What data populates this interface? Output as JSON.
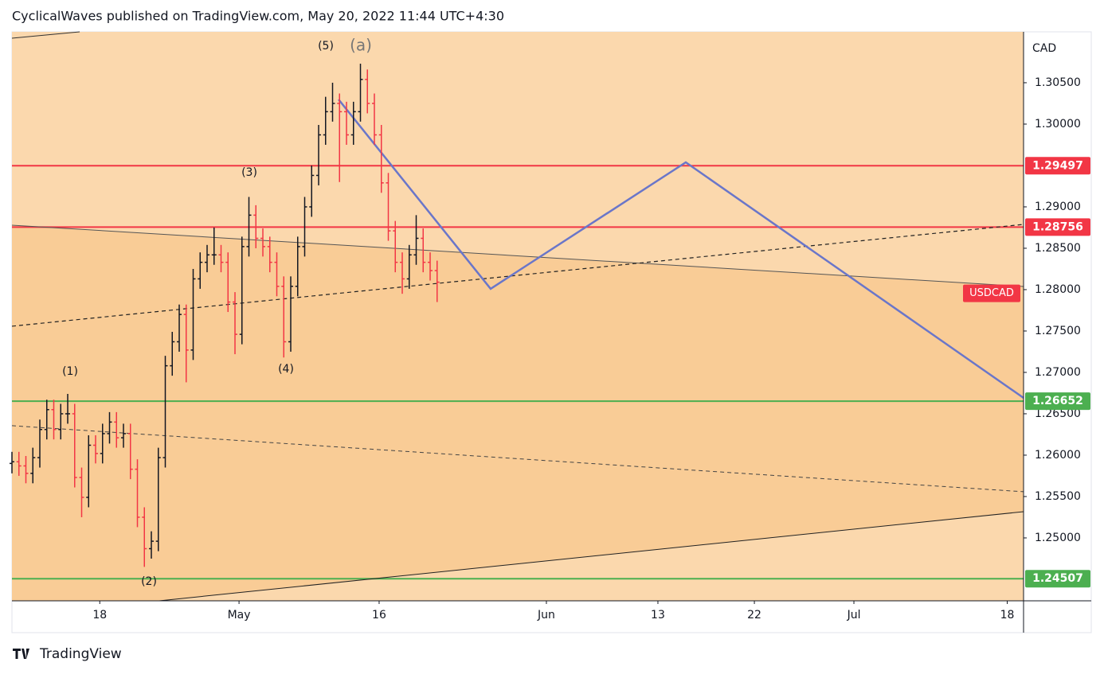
{
  "header": {
    "text": "CyclicalWaves published on TradingView.com, May 20, 2022 11:44 UTC+4:30"
  },
  "footer": {
    "brand": "TradingView"
  },
  "chart_data": {
    "type": "ohlc",
    "symbol": "USDCAD",
    "y_axis_label": "CAD",
    "up_color": "#131722",
    "down_color": "#f23645",
    "x": [
      0,
      0.5,
      1,
      1.5,
      2,
      2.5,
      3,
      3.5,
      4,
      4.5,
      5,
      5.5,
      6,
      6.5,
      7,
      7.5,
      8,
      8.5,
      9,
      9.5,
      10,
      10.5,
      11,
      11.5,
      12,
      12.5,
      13,
      13.5,
      14,
      14.5,
      15,
      15.5,
      16,
      16.5,
      17,
      17.5,
      18,
      18.5,
      19,
      19.5,
      20,
      20.5,
      21,
      21.5,
      22,
      22.5,
      23,
      23.5,
      24,
      24.5,
      25,
      25.5,
      26,
      26.5,
      27,
      27.5,
      28,
      28.5,
      29,
      29.5,
      30,
      30.5
    ],
    "open": [
      1.259,
      1.2592,
      1.2587,
      1.2578,
      1.2597,
      1.2631,
      1.2655,
      1.2631,
      1.265,
      1.265,
      1.2573,
      1.2549,
      1.2612,
      1.2602,
      1.2626,
      1.264,
      1.2621,
      1.2626,
      1.2583,
      1.2525,
      1.2487,
      1.2496,
      1.2597,
      1.2708,
      1.2737,
      1.277,
      1.2727,
      1.2813,
      1.2833,
      1.2842,
      1.2842,
      1.2833,
      1.2785,
      1.2746,
      1.2852,
      1.289,
      1.2862,
      1.2852,
      1.2833,
      1.2804,
      1.2737,
      1.2804,
      1.2852,
      1.29,
      1.2938,
      1.2987,
      1.3015,
      1.3025,
      1.3015,
      1.2987,
      1.3015,
      1.3054,
      1.3025,
      1.2987,
      1.2929,
      1.2871,
      1.2833,
      1.2813,
      1.2842,
      1.2862,
      1.2833,
      1.2823
    ],
    "high": [
      1.2604,
      1.2604,
      1.2599,
      1.2609,
      1.2643,
      1.2667,
      1.2667,
      1.2662,
      1.2674,
      1.2662,
      1.2585,
      1.2624,
      1.2624,
      1.2638,
      1.2652,
      1.2652,
      1.2638,
      1.2638,
      1.2595,
      1.2537,
      1.2508,
      1.2609,
      1.272,
      1.2749,
      1.2782,
      1.2782,
      1.2825,
      1.2845,
      1.2854,
      1.2875,
      1.2854,
      1.2845,
      1.2797,
      1.2864,
      1.2912,
      1.2902,
      1.2874,
      1.2864,
      1.2845,
      1.2816,
      1.2816,
      1.2864,
      1.2912,
      1.295,
      1.2999,
      1.3033,
      1.305,
      1.3037,
      1.3027,
      1.3027,
      1.3073,
      1.3066,
      1.3037,
      1.2999,
      1.2941,
      1.2883,
      1.2845,
      1.2854,
      1.289,
      1.2874,
      1.2845,
      1.2835
    ],
    "low": [
      1.2578,
      1.2575,
      1.2566,
      1.2566,
      1.2585,
      1.2619,
      1.2619,
      1.2619,
      1.2638,
      1.2561,
      1.2525,
      1.2537,
      1.259,
      1.259,
      1.2614,
      1.2609,
      1.2609,
      1.2571,
      1.2513,
      1.2465,
      1.2475,
      1.2484,
      1.2585,
      1.2696,
      1.2725,
      1.2688,
      1.2715,
      1.2801,
      1.2821,
      1.283,
      1.2821,
      1.2773,
      1.2722,
      1.2734,
      1.284,
      1.285,
      1.284,
      1.2821,
      1.2792,
      1.2718,
      1.2725,
      1.2792,
      1.284,
      1.2888,
      1.2926,
      1.2975,
      1.3003,
      1.293,
      1.2975,
      1.2975,
      1.3003,
      1.3013,
      1.2975,
      1.2917,
      1.2859,
      1.2821,
      1.2795,
      1.2801,
      1.283,
      1.2821,
      1.2811,
      1.2785
    ],
    "close": [
      1.2592,
      1.2587,
      1.2578,
      1.2597,
      1.2631,
      1.2655,
      1.2631,
      1.265,
      1.265,
      1.2573,
      1.2549,
      1.2612,
      1.2602,
      1.2626,
      1.264,
      1.2621,
      1.2626,
      1.2583,
      1.2525,
      1.2487,
      1.2496,
      1.2597,
      1.2708,
      1.2737,
      1.277,
      1.2727,
      1.2813,
      1.2833,
      1.2842,
      1.2842,
      1.2833,
      1.2785,
      1.2746,
      1.2852,
      1.289,
      1.2862,
      1.2852,
      1.2833,
      1.2804,
      1.2737,
      1.2804,
      1.2852,
      1.29,
      1.2938,
      1.2987,
      1.3015,
      1.3025,
      1.3015,
      1.2987,
      1.3015,
      1.3054,
      1.3025,
      1.2987,
      1.2929,
      1.2871,
      1.2833,
      1.2813,
      1.2842,
      1.2862,
      1.2833,
      1.2823,
      1.2809
    ],
    "xlim": [
      0,
      72.57
    ],
    "ylim": [
      1.2424,
      1.31115
    ],
    "xticks": [
      {
        "value": 6.3,
        "label": "18"
      },
      {
        "value": 16.29,
        "label": "May"
      },
      {
        "value": 26.34,
        "label": "16"
      },
      {
        "value": 38.34,
        "label": "Jun"
      },
      {
        "value": 46.34,
        "label": "13"
      },
      {
        "value": 53.26,
        "label": "22"
      },
      {
        "value": 60.4,
        "label": "Jul"
      },
      {
        "value": 71.4,
        "label": "18"
      }
    ],
    "yticks": [
      {
        "value": 1.305,
        "label": "1.30500"
      },
      {
        "value": 1.3,
        "label": "1.30000"
      },
      {
        "value": 1.29,
        "label": "1.29000"
      },
      {
        "value": 1.285,
        "label": "1.28500"
      },
      {
        "value": 1.28,
        "label": "1.28000"
      },
      {
        "value": 1.275,
        "label": "1.27500"
      },
      {
        "value": 1.27,
        "label": "1.27000"
      },
      {
        "value": 1.265,
        "label": "1.26500"
      },
      {
        "value": 1.26,
        "label": "1.26000"
      },
      {
        "value": 1.255,
        "label": "1.25500"
      },
      {
        "value": 1.25,
        "label": "1.25000"
      }
    ],
    "levels": [
      {
        "value": 1.29497,
        "color": "#f23645"
      },
      {
        "value": 1.28756,
        "color": "#f23645"
      },
      {
        "value": 1.26652,
        "color": "#4caf50"
      },
      {
        "value": 1.24507,
        "color": "#4caf50"
      }
    ],
    "drawings": [
      {
        "x": [
          0,
          4.86
        ],
        "y": [
          1.31038,
          1.31115
        ],
        "color": "#333333",
        "dash": false,
        "width": 1
      },
      {
        "x": [
          0,
          72.57
        ],
        "y": [
          1.28779,
          1.28038
        ],
        "color": "#555555",
        "dash": false,
        "width": 1
      },
      {
        "x": [
          0,
          72.57
        ],
        "y": [
          1.27558,
          1.28788
        ],
        "color": "#222222",
        "dash": true,
        "width": 1.2
      },
      {
        "x": [
          0,
          72.57
        ],
        "y": [
          1.26356,
          1.25558
        ],
        "color": "#444444",
        "dash": true,
        "width": 1
      },
      {
        "x": [
          10.57,
          72.57
        ],
        "y": [
          1.2424,
          1.25317
        ],
        "color": "#222222",
        "dash": false,
        "width": 1
      },
      {
        "x": [
          23.43,
          34.34,
          48.34,
          72.57
        ],
        "y": [
          1.30298,
          1.2801,
          1.29538,
          1.26692
        ],
        "color": "#6a76c9",
        "dash": false,
        "width": 2.5
      }
    ],
    "annotations": [
      {
        "text": "(5)"
      },
      {
        "text": "(a)"
      },
      {
        "text": "(3)"
      },
      {
        "text": "(4)"
      },
      {
        "text": "(1)"
      },
      {
        "text": "(2)"
      }
    ]
  }
}
